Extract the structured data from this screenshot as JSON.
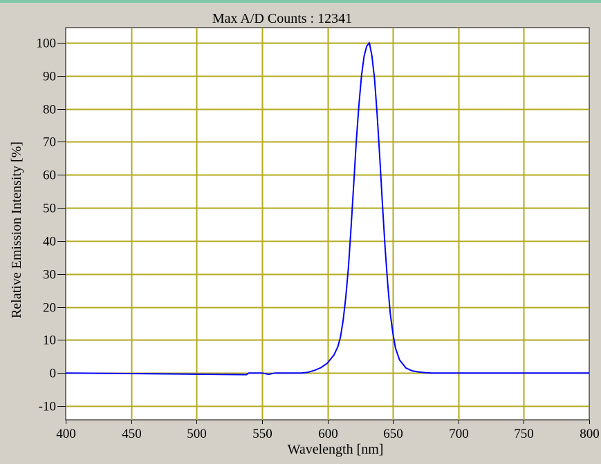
{
  "chart_data": {
    "type": "line",
    "title": "Max A/D Counts : 12341",
    "xlabel": "Wavelength [nm]",
    "ylabel": "Relative Emission Intensity [%]",
    "xlim": [
      400,
      800
    ],
    "ylim": [
      -10,
      100
    ],
    "xticks": [
      400,
      450,
      500,
      550,
      600,
      650,
      700,
      750,
      800
    ],
    "yticks": [
      -10,
      0,
      10,
      20,
      30,
      40,
      50,
      60,
      70,
      80,
      90,
      100
    ],
    "grid": true,
    "series": [
      {
        "color": "#0000ff",
        "x": [
          400,
          538,
          540,
          550,
          555,
          560,
          580,
          585,
          590,
          595,
          600,
          605,
          608,
          610,
          612,
          614,
          616,
          618,
          620,
          622,
          624,
          626,
          628,
          630,
          632,
          634,
          636,
          638,
          640,
          642,
          644,
          646,
          648,
          650,
          652,
          655,
          660,
          665,
          670,
          675,
          680,
          700,
          750,
          800
        ],
        "y": [
          0,
          -0.5,
          0,
          0,
          -0.4,
          0,
          0,
          0.2,
          0.8,
          1.6,
          3,
          5.5,
          8,
          11,
          16,
          23,
          32,
          44,
          57,
          70,
          81,
          90,
          96,
          99,
          100,
          96,
          89,
          78,
          65,
          51,
          38,
          27,
          18,
          12,
          7.5,
          4,
          1.5,
          0.6,
          0.3,
          0.1,
          0,
          0,
          0,
          0
        ]
      }
    ],
    "plot_background": "#ffffff",
    "grid_color": "#b3aa1c",
    "line_color": "#0000ff",
    "frame_background": "#d4d0c8"
  }
}
